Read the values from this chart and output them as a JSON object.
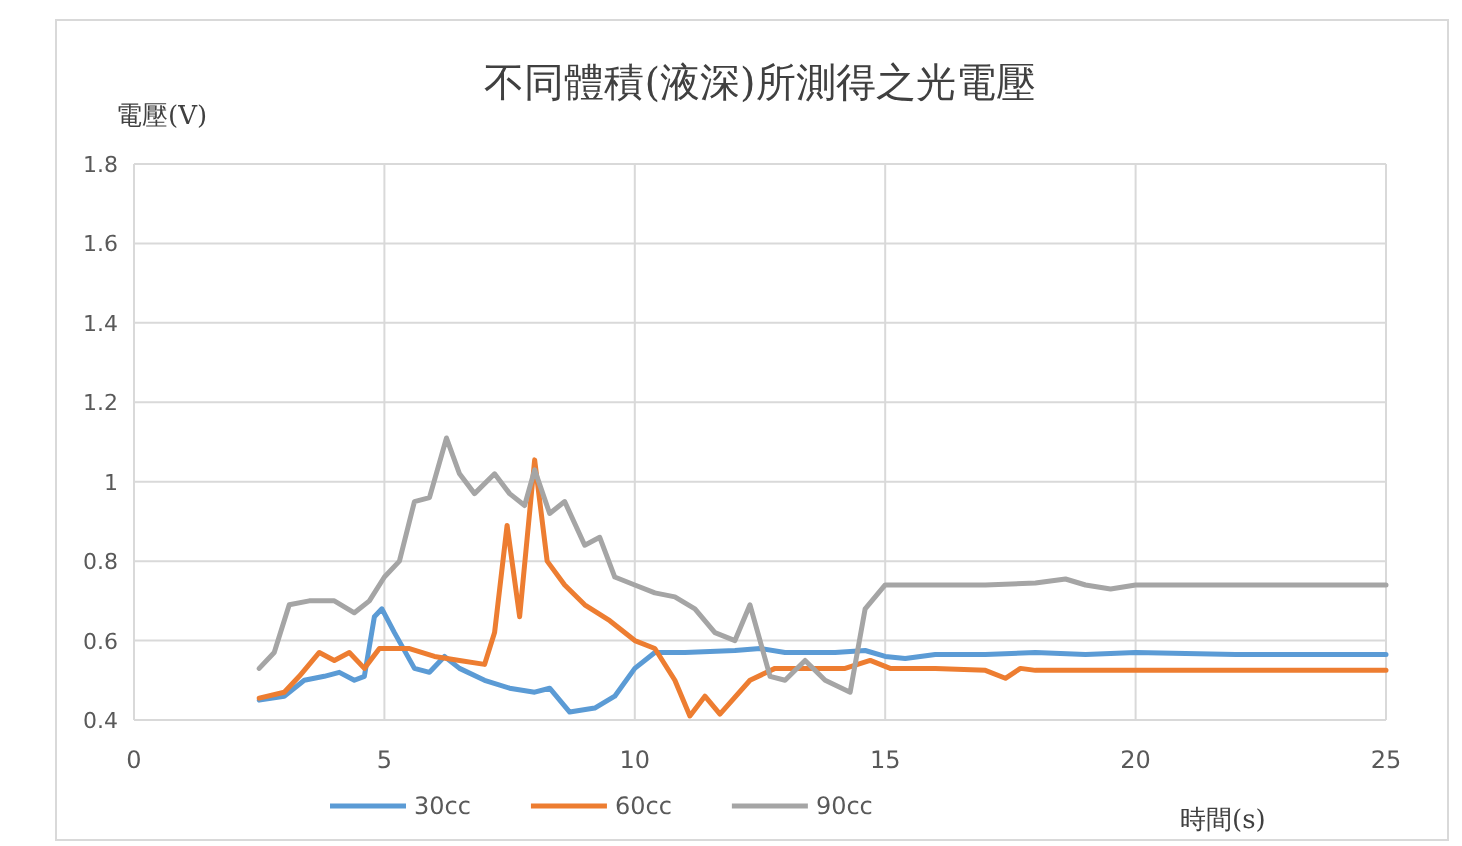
{
  "chart_data": {
    "type": "line",
    "title": "不同體積(液深)所測得之光電壓",
    "xlabel": "時間(s)",
    "ylabel": "電壓(V)",
    "xlim": [
      0,
      25
    ],
    "xticks": [
      0,
      5,
      10,
      15,
      20,
      25
    ],
    "ylim": [
      0.4,
      1.8
    ],
    "yticks": [
      0.4,
      0.6,
      0.8,
      1,
      1.2,
      1.4,
      1.6,
      1.8
    ],
    "grid": true,
    "legend": "bottom",
    "marker": "none",
    "line_style": "solid",
    "series": [
      {
        "name": "30cc",
        "color": "#5b9bd5",
        "x": [
          2.5,
          3.0,
          3.4,
          3.8,
          4.1,
          4.4,
          4.6,
          4.8,
          4.95,
          5.2,
          5.6,
          5.9,
          6.2,
          6.5,
          7.0,
          7.5,
          8.0,
          8.3,
          8.7,
          9.2,
          9.6,
          10.0,
          10.4,
          11,
          12,
          12.5,
          13,
          14,
          14.6,
          15,
          15.4,
          16,
          17,
          18,
          19,
          20,
          22,
          25
        ],
        "values": [
          0.45,
          0.46,
          0.5,
          0.51,
          0.52,
          0.5,
          0.51,
          0.66,
          0.68,
          0.62,
          0.53,
          0.52,
          0.56,
          0.53,
          0.5,
          0.48,
          0.47,
          0.48,
          0.42,
          0.43,
          0.46,
          0.53,
          0.57,
          0.57,
          0.575,
          0.58,
          0.57,
          0.57,
          0.575,
          0.56,
          0.555,
          0.565,
          0.565,
          0.57,
          0.565,
          0.57,
          0.565,
          0.565
        ]
      },
      {
        "name": "60cc",
        "color": "#ed7d31",
        "x": [
          2.5,
          3.0,
          3.3,
          3.7,
          4.0,
          4.3,
          4.6,
          4.9,
          5.5,
          6.0,
          6.5,
          7.0,
          7.2,
          7.45,
          7.7,
          8.0,
          8.25,
          8.6,
          9.0,
          9.5,
          10.0,
          10.4,
          10.8,
          11.1,
          11.4,
          11.7,
          12.3,
          12.8,
          13.5,
          14.2,
          14.7,
          15.1,
          16,
          17,
          17.4,
          17.7,
          18,
          19,
          20,
          25
        ],
        "values": [
          0.455,
          0.47,
          0.51,
          0.57,
          0.55,
          0.57,
          0.53,
          0.58,
          0.58,
          0.56,
          0.55,
          0.54,
          0.62,
          0.89,
          0.66,
          1.055,
          0.8,
          0.74,
          0.69,
          0.65,
          0.6,
          0.58,
          0.5,
          0.41,
          0.46,
          0.415,
          0.5,
          0.53,
          0.53,
          0.53,
          0.55,
          0.53,
          0.53,
          0.525,
          0.505,
          0.53,
          0.525,
          0.525,
          0.525,
          0.525
        ]
      },
      {
        "name": "90cc",
        "color": "#a5a5a5",
        "x": [
          2.5,
          2.8,
          3.1,
          3.5,
          4.0,
          4.4,
          4.7,
          5.0,
          5.3,
          5.6,
          5.9,
          6.24,
          6.5,
          6.8,
          7.2,
          7.5,
          7.8,
          8.0,
          8.3,
          8.6,
          9.0,
          9.3,
          9.6,
          10.0,
          10.4,
          10.8,
          11.2,
          11.6,
          12.0,
          12.3,
          12.7,
          13.0,
          13.4,
          13.8,
          14.3,
          14.6,
          15.0,
          16,
          17,
          18,
          18.6,
          19,
          19.5,
          20,
          21,
          22,
          23,
          24,
          25
        ],
        "values": [
          0.53,
          0.57,
          0.69,
          0.7,
          0.7,
          0.67,
          0.7,
          0.76,
          0.8,
          0.95,
          0.96,
          1.11,
          1.02,
          0.97,
          1.02,
          0.97,
          0.94,
          1.03,
          0.92,
          0.95,
          0.84,
          0.86,
          0.76,
          0.74,
          0.72,
          0.71,
          0.68,
          0.62,
          0.6,
          0.69,
          0.51,
          0.5,
          0.55,
          0.5,
          0.47,
          0.68,
          0.74,
          0.74,
          0.74,
          0.745,
          0.755,
          0.74,
          0.73,
          0.74,
          0.74,
          0.74,
          0.74,
          0.74,
          0.74
        ]
      }
    ]
  }
}
